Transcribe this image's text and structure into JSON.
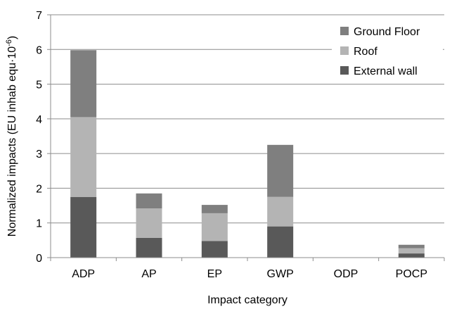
{
  "chart_data": {
    "type": "bar",
    "stacked": true,
    "title": "",
    "xlabel": "Impact category",
    "ylabel": "Normalized impacts (EU inhab equ·10",
    "ylabel_superscript": "-6",
    "ylabel_suffix": ")",
    "ylim": [
      0,
      7
    ],
    "yticks": [
      "0",
      "1",
      "2",
      "3",
      "4",
      "5",
      "6",
      "7"
    ],
    "grid": true,
    "legend_position": "top-right",
    "categories": [
      "ADP",
      "AP",
      "EP",
      "GWP",
      "ODP",
      "POCP"
    ],
    "series": [
      {
        "name": "External wall",
        "color": "#595959",
        "values": [
          1.75,
          0.57,
          0.48,
          0.9,
          0.0,
          0.12
        ]
      },
      {
        "name": "Roof",
        "color": "#b4b4b4",
        "values": [
          2.3,
          0.85,
          0.8,
          0.85,
          0.0,
          0.15
        ]
      },
      {
        "name": "Ground Floor",
        "color": "#7f7f7f",
        "values": [
          1.93,
          0.43,
          0.24,
          1.5,
          0.0,
          0.1
        ]
      }
    ],
    "legend_order": [
      "Ground Floor",
      "Roof",
      "External wall"
    ]
  }
}
